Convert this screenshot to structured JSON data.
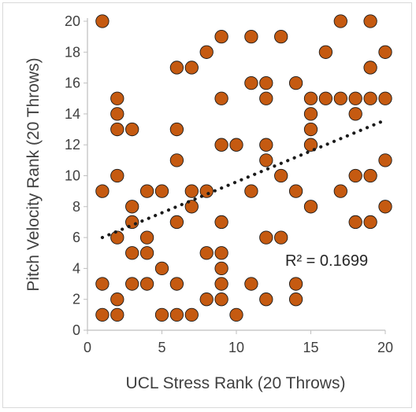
{
  "chart_data": {
    "type": "scatter",
    "xlabel": "UCL Stress Rank (20 Throws)",
    "ylabel": "Pitch Velocity Rank (20 Throws)",
    "xlim": [
      0,
      20
    ],
    "ylim": [
      0,
      20
    ],
    "xticks": [
      "0",
      "5",
      "10",
      "15",
      "20"
    ],
    "yticks": [
      "0",
      "2",
      "4",
      "6",
      "8",
      "10",
      "12",
      "14",
      "16",
      "18",
      "20"
    ],
    "grid": false,
    "legend": "none",
    "marker_color": "#c55a11",
    "marker_edge": "#1a1a1a",
    "trendline_color": "#1a1a1a",
    "trendline": {
      "type": "linear",
      "x_start": 1,
      "y_start": 6.0,
      "x_end": 20,
      "y_end": 13.6
    },
    "annotation": "R² = 0.1699",
    "points": [
      [
        1,
        20
      ],
      [
        1,
        9
      ],
      [
        1,
        3
      ],
      [
        1,
        1
      ],
      [
        2,
        15
      ],
      [
        2,
        14
      ],
      [
        2,
        13
      ],
      [
        2,
        10
      ],
      [
        2,
        6
      ],
      [
        2,
        2
      ],
      [
        2,
        1
      ],
      [
        3,
        13
      ],
      [
        3,
        8
      ],
      [
        3,
        7
      ],
      [
        3,
        5
      ],
      [
        3,
        3
      ],
      [
        4,
        9
      ],
      [
        4,
        6
      ],
      [
        4,
        5
      ],
      [
        4,
        3
      ],
      [
        5,
        9
      ],
      [
        5,
        4
      ],
      [
        5,
        1
      ],
      [
        6,
        17
      ],
      [
        6,
        13
      ],
      [
        6,
        11
      ],
      [
        6,
        7
      ],
      [
        6,
        3
      ],
      [
        6,
        1
      ],
      [
        7,
        17
      ],
      [
        7,
        9
      ],
      [
        7,
        8
      ],
      [
        7,
        1
      ],
      [
        8,
        18
      ],
      [
        8,
        9
      ],
      [
        8,
        5
      ],
      [
        8,
        2
      ],
      [
        9,
        19
      ],
      [
        9,
        15
      ],
      [
        9,
        12
      ],
      [
        9,
        7
      ],
      [
        9,
        5
      ],
      [
        9,
        4
      ],
      [
        9,
        3
      ],
      [
        9,
        2
      ],
      [
        10,
        12
      ],
      [
        10,
        1
      ],
      [
        11,
        19
      ],
      [
        11,
        16
      ],
      [
        11,
        9
      ],
      [
        11,
        3
      ],
      [
        12,
        16
      ],
      [
        12,
        15
      ],
      [
        12,
        12
      ],
      [
        12,
        11
      ],
      [
        12,
        6
      ],
      [
        12,
        2
      ],
      [
        13,
        19
      ],
      [
        13,
        10
      ],
      [
        13,
        6
      ],
      [
        14,
        16
      ],
      [
        14,
        9
      ],
      [
        14,
        3
      ],
      [
        14,
        2
      ],
      [
        15,
        15
      ],
      [
        15,
        14
      ],
      [
        15,
        13
      ],
      [
        15,
        12
      ],
      [
        15,
        8
      ],
      [
        16,
        18
      ],
      [
        16,
        15
      ],
      [
        17,
        20
      ],
      [
        17,
        15
      ],
      [
        17,
        9
      ],
      [
        18,
        15
      ],
      [
        18,
        14
      ],
      [
        18,
        10
      ],
      [
        18,
        7
      ],
      [
        19,
        20
      ],
      [
        19,
        17
      ],
      [
        19,
        15
      ],
      [
        19,
        10
      ],
      [
        19,
        7
      ],
      [
        20,
        18
      ],
      [
        20,
        15
      ],
      [
        20,
        11
      ],
      [
        20,
        8
      ]
    ]
  }
}
